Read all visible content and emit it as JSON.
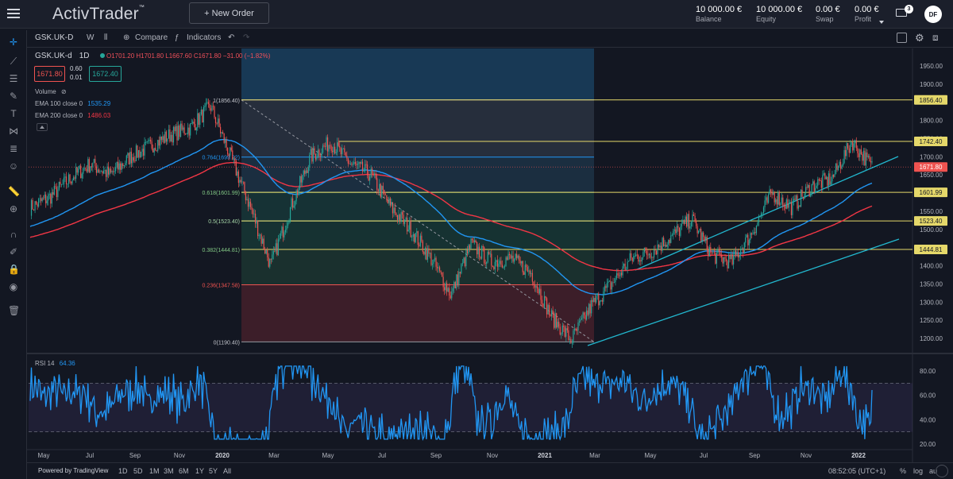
{
  "app": {
    "brand": "ActivTrader",
    "brand_tm": "™",
    "new_order_label": "+ New Order"
  },
  "account": {
    "balance": {
      "value": "10 000.00 €",
      "label": "Balance"
    },
    "equity": {
      "value": "10 000.00 €",
      "label": "Equity"
    },
    "swap": {
      "value": "0.00 €",
      "label": "Swap"
    },
    "profit": {
      "value": "0.00 €",
      "label": "Profit"
    },
    "notifications": "3",
    "avatar_initials": "DF"
  },
  "toolbar": {
    "symbol": "GSK.UK-D",
    "interval": "W",
    "compare_label": "Compare",
    "indicators_label": "Indicators"
  },
  "legend": {
    "symbol": "GSK.UK-d",
    "timeframe": "1D",
    "ohlc": "O1701.20 H1701.80 L1667.60 C1671.80 −31.00 (−1.82%)",
    "bid": "1671.80",
    "ask": "1672.40",
    "spread_top": "0.60",
    "spread_bottom": "0.01",
    "volume_label": "Volume",
    "ema100_label": "EMA 100 close 0",
    "ema100_value": "1535.29",
    "ema200_label": "EMA 200 close 0",
    "ema200_value": "1486.03"
  },
  "rsi": {
    "label": "RSI 14",
    "value": "64.36"
  },
  "bottom": {
    "powered_by": "Powered by TradingView",
    "ranges": [
      "1D",
      "5D",
      "1M",
      "3M",
      "6M",
      "1Y",
      "5Y",
      "All"
    ],
    "clock": "08:52:05 (UTC+1)",
    "percent": "%",
    "log": "log",
    "auto": "au"
  },
  "colors": {
    "bg": "#131722",
    "up": "#26a69a",
    "down": "#ef5350",
    "ema100": "#2196f3",
    "ema200": "#f23645",
    "fib_line": "#e5d86a",
    "channel": "#22b8cf",
    "rsi_line": "#2196f3"
  },
  "chart_data": [
    {
      "type": "line",
      "title": "GSK.UK-d 1D",
      "y_axis_ticks": [
        1200,
        1250,
        1300,
        1350,
        1400,
        1450,
        1500,
        1550,
        1600,
        1650,
        1700,
        1750,
        1800,
        1850,
        1900,
        1950
      ],
      "x_axis_ticks": [
        "May",
        "Jul",
        "Sep",
        "Nov",
        "2020",
        "Mar",
        "May",
        "Jul",
        "Sep",
        "Nov",
        "2021",
        "Mar",
        "May",
        "Jul",
        "Sep",
        "Nov",
        "2022"
      ],
      "fib_levels": [
        {
          "label": "1(1856.40)",
          "value": 1856.4
        },
        {
          "label": "0.764(1699.22)",
          "value": 1699.22
        },
        {
          "label": "0.618(1601.99)",
          "value": 1601.99
        },
        {
          "label": "0.5(1523.40)",
          "value": 1523.4
        },
        {
          "label": "0.382(1444.81)",
          "value": 1444.81
        },
        {
          "label": "0.236(1347.58)",
          "value": 1347.58
        },
        {
          "label": "0(1190.40)",
          "value": 1190.4
        }
      ],
      "price_labels": [
        {
          "text": "1856.40",
          "value": 1856.4,
          "color": "#e5d86a"
        },
        {
          "text": "1742.40",
          "value": 1742.4,
          "color": "#e5d86a"
        },
        {
          "text": "1671.80",
          "value": 1671.8,
          "color": "#ef5350"
        },
        {
          "text": "1601.99",
          "value": 1601.99,
          "color": "#e5d86a"
        },
        {
          "text": "1523.40",
          "value": 1523.4,
          "color": "#e5d86a"
        },
        {
          "text": "1444.81",
          "value": 1444.81,
          "color": "#e5d86a"
        }
      ],
      "price_path": [
        [
          "2019-05",
          1560
        ],
        [
          "2019-06",
          1590
        ],
        [
          "2019-07",
          1640
        ],
        [
          "2019-08",
          1680
        ],
        [
          "2019-09",
          1650
        ],
        [
          "2019-10",
          1700
        ],
        [
          "2019-11",
          1730
        ],
        [
          "2019-12",
          1760
        ],
        [
          "2020-01",
          1780
        ],
        [
          "2020-02",
          1840
        ],
        [
          "2020-02b",
          1700
        ],
        [
          "2020-03",
          1560
        ],
        [
          "2020-03b",
          1400
        ],
        [
          "2020-04",
          1560
        ],
        [
          "2020-05",
          1700
        ],
        [
          "2020-05b",
          1740
        ],
        [
          "2020-06",
          1680
        ],
        [
          "2020-07",
          1650
        ],
        [
          "2020-08",
          1560
        ],
        [
          "2020-09",
          1500
        ],
        [
          "2020-10",
          1420
        ],
        [
          "2020-10b",
          1320
        ],
        [
          "2020-11",
          1460
        ],
        [
          "2020-12",
          1410
        ],
        [
          "2021-01",
          1420
        ],
        [
          "2021-02",
          1380
        ],
        [
          "2021-02b",
          1260
        ],
        [
          "2021-03",
          1195
        ],
        [
          "2021-04",
          1290
        ],
        [
          "2021-05",
          1350
        ],
        [
          "2021-06",
          1420
        ],
        [
          "2021-07",
          1440
        ],
        [
          "2021-08",
          1480
        ],
        [
          "2021-08b",
          1530
        ],
        [
          "2021-09",
          1430
        ],
        [
          "2021-10",
          1410
        ],
        [
          "2021-11",
          1490
        ],
        [
          "2021-11b",
          1600
        ],
        [
          "2021-12",
          1560
        ],
        [
          "2021-12b",
          1620
        ],
        [
          "2022-01",
          1640
        ],
        [
          "2022-01b",
          1742
        ],
        [
          "2022-01c",
          1672
        ]
      ],
      "series": [
        {
          "name": "EMA 100 close 0",
          "color": "#2196f3",
          "last": 1535.29
        },
        {
          "name": "EMA 200 close 0",
          "color": "#f23645",
          "last": 1486.03
        }
      ]
    },
    {
      "type": "line",
      "title": "RSI 14",
      "value": 64.36,
      "y_axis_ticks": [
        20,
        40,
        60,
        80
      ],
      "bands": [
        30,
        70
      ]
    }
  ]
}
